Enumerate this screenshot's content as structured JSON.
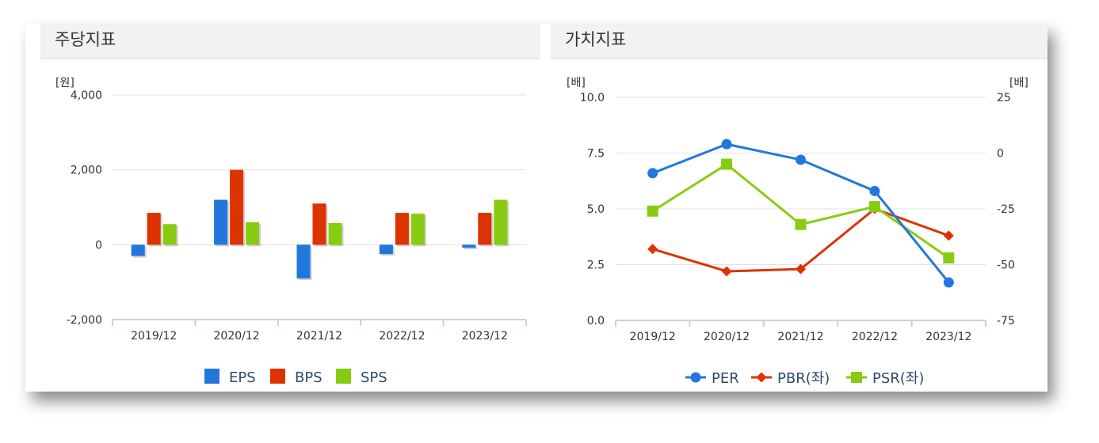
{
  "panels": {
    "left_title": "주당지표",
    "right_title": "가치지표"
  },
  "colors": {
    "EPS": "#2277dd",
    "BPS": "#dd3300",
    "SPS": "#88cc11",
    "PER": "#2277dd",
    "PBR": "#dd3300",
    "PSR": "#88cc11",
    "grid": "#dde3ea",
    "axis": "#c5d2e0",
    "legend_text": "#2d4a6e"
  },
  "chart_data": [
    {
      "type": "bar",
      "title": "주당지표",
      "unit_label": "[원]",
      "categories": [
        "2019/12",
        "2020/12",
        "2021/12",
        "2022/12",
        "2023/12"
      ],
      "series": [
        {
          "name": "EPS",
          "values": [
            -300,
            1200,
            -900,
            -250,
            -80
          ]
        },
        {
          "name": "BPS",
          "values": [
            850,
            2000,
            1100,
            850,
            850
          ]
        },
        {
          "name": "SPS",
          "values": [
            550,
            600,
            580,
            830,
            1200
          ]
        }
      ],
      "ylim": [
        -2000,
        4000
      ],
      "yticks": [
        "4,000",
        "2,000",
        "0",
        "-2,000"
      ],
      "ytick_values": [
        4000,
        2000,
        0,
        -2000
      ],
      "grid": true,
      "legend": "bottom"
    },
    {
      "type": "line",
      "title": "가치지표",
      "left_unit_label": "[배]",
      "right_unit_label": "[배]",
      "categories": [
        "2019/12",
        "2020/12",
        "2021/12",
        "2022/12",
        "2023/12"
      ],
      "series": [
        {
          "name": "PER",
          "axis": "right",
          "marker": "circle",
          "values": [
            -9,
            4,
            -3,
            -17,
            -58
          ]
        },
        {
          "name": "PBR(좌)",
          "axis": "left",
          "marker": "diamond",
          "values": [
            3.2,
            2.2,
            2.3,
            5.0,
            3.8
          ]
        },
        {
          "name": "PSR(좌)",
          "axis": "left",
          "marker": "square",
          "values": [
            4.9,
            7.0,
            4.3,
            5.1,
            2.8
          ]
        }
      ],
      "ylim_left": [
        0,
        10
      ],
      "yticks_left": [
        "10.0",
        "7.5",
        "5.0",
        "2.5",
        "0.0"
      ],
      "ytick_left_values": [
        10,
        7.5,
        5,
        2.5,
        0
      ],
      "ylim_right": [
        -75,
        25
      ],
      "yticks_right": [
        "25",
        "0",
        "-25",
        "-50",
        "-75"
      ],
      "ytick_right_values": [
        25,
        0,
        -25,
        -50,
        -75
      ],
      "grid": true,
      "legend": "bottom"
    }
  ]
}
